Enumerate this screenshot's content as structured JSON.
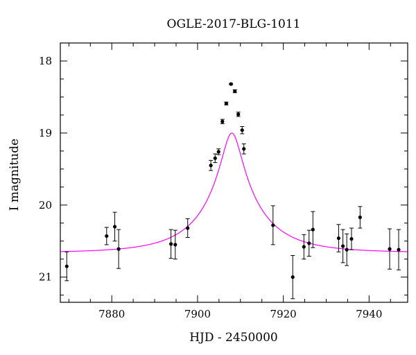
{
  "chart_data": {
    "type": "scatter",
    "title": "OGLE-2017-BLG-1011",
    "xlabel": "HJD - 2450000",
    "ylabel": "I magnitude",
    "xlim": [
      7868,
      7949
    ],
    "ylim": [
      21.35,
      17.75
    ],
    "y_inverted": true,
    "x_major_ticks": [
      7880,
      7900,
      7920,
      7940
    ],
    "y_major_ticks": [
      18,
      19,
      20,
      21
    ],
    "x_minor_step": 5,
    "y_minor_step": 0.25,
    "point_color": "#000000",
    "curve_color": "#ff00ff",
    "model_curve": {
      "type": "microlensing-paczynski",
      "t0": 7908.0,
      "u0": 0.158,
      "tE": 14.0,
      "I_baseline": 20.66,
      "blend_fraction": 0.67
    },
    "points": [
      {
        "x": 7869.5,
        "y": 20.85,
        "err": 0.2
      },
      {
        "x": 7878.8,
        "y": 20.43,
        "err": 0.12
      },
      {
        "x": 7880.7,
        "y": 20.3,
        "err": 0.2
      },
      {
        "x": 7881.6,
        "y": 20.61,
        "err": 0.27
      },
      {
        "x": 7893.8,
        "y": 20.54,
        "err": 0.2
      },
      {
        "x": 7894.8,
        "y": 20.55,
        "err": 0.2
      },
      {
        "x": 7897.7,
        "y": 20.32,
        "err": 0.13
      },
      {
        "x": 7903.1,
        "y": 19.45,
        "err": 0.07
      },
      {
        "x": 7904.1,
        "y": 19.35,
        "err": 0.06
      },
      {
        "x": 7904.9,
        "y": 19.26,
        "err": 0.04
      },
      {
        "x": 7905.8,
        "y": 18.84,
        "err": 0.03
      },
      {
        "x": 7906.7,
        "y": 18.59,
        "err": 0.02
      },
      {
        "x": 7907.8,
        "y": 18.32,
        "err": 0.01
      },
      {
        "x": 7908.7,
        "y": 18.42,
        "err": 0.02
      },
      {
        "x": 7909.5,
        "y": 18.74,
        "err": 0.03
      },
      {
        "x": 7910.4,
        "y": 18.96,
        "err": 0.05
      },
      {
        "x": 7910.8,
        "y": 19.22,
        "err": 0.07
      },
      {
        "x": 7917.6,
        "y": 20.28,
        "err": 0.27
      },
      {
        "x": 7922.2,
        "y": 21.0,
        "err": 0.3
      },
      {
        "x": 7924.8,
        "y": 20.58,
        "err": 0.17
      },
      {
        "x": 7926.0,
        "y": 20.53,
        "err": 0.18
      },
      {
        "x": 7926.9,
        "y": 20.34,
        "err": 0.25
      },
      {
        "x": 7932.9,
        "y": 20.46,
        "err": 0.19
      },
      {
        "x": 7933.9,
        "y": 20.57,
        "err": 0.23
      },
      {
        "x": 7934.8,
        "y": 20.62,
        "err": 0.22
      },
      {
        "x": 7935.9,
        "y": 20.47,
        "err": 0.15
      },
      {
        "x": 7937.9,
        "y": 20.17,
        "err": 0.15
      },
      {
        "x": 7944.8,
        "y": 20.61,
        "err": 0.28
      },
      {
        "x": 7946.9,
        "y": 20.62,
        "err": 0.28
      }
    ]
  }
}
